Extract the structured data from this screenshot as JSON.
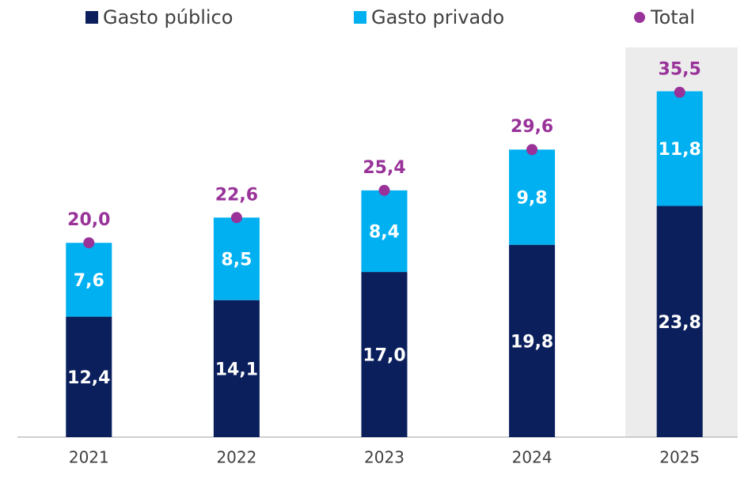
{
  "chart_data": {
    "type": "bar",
    "stacked": true,
    "categories": [
      "2021",
      "2022",
      "2023",
      "2024",
      "2025"
    ],
    "ylim": [
      0,
      45
    ],
    "grid": false,
    "legend": "top",
    "series": [
      {
        "name": "Gasto público",
        "color": "#0a1f5c",
        "values": [
          12.4,
          14.1,
          17.0,
          19.8,
          23.8
        ],
        "value_labels": [
          "12,4",
          "14,1",
          "17,0",
          "19,8",
          "23,8"
        ]
      },
      {
        "name": "Gasto privado",
        "color": "#00b0f0",
        "values": [
          7.6,
          8.5,
          8.4,
          9.8,
          11.8
        ],
        "value_labels": [
          "7,6",
          "8,5",
          "8,4",
          "9,8",
          "11,8"
        ]
      },
      {
        "name": "Total",
        "type": "point",
        "color": "#993399",
        "values": [
          20.0,
          22.6,
          25.4,
          29.6,
          35.5
        ],
        "value_labels": [
          "20,0",
          "22,6",
          "25,4",
          "29,6",
          "35,5"
        ]
      }
    ]
  }
}
